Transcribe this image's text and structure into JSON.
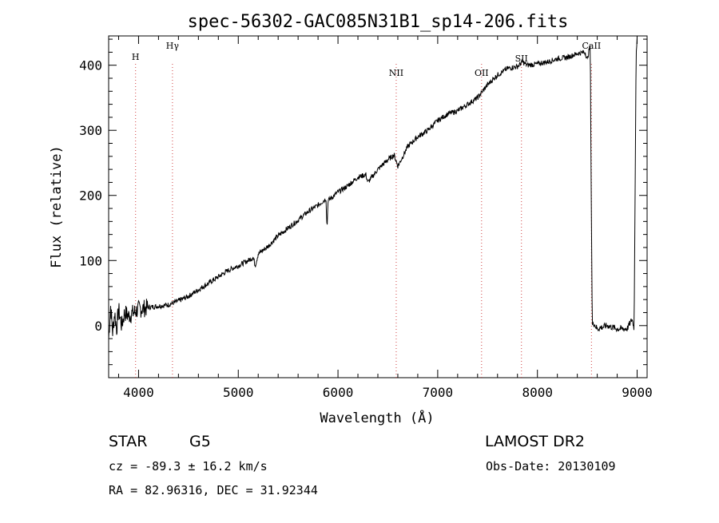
{
  "chart_data": {
    "type": "line",
    "title": "spec-56302-GAC085N31B1_sp14-206.fits",
    "xlabel": "Wavelength (Å)",
    "ylabel": "Flux (relative)",
    "xlim": [
      3700,
      9100
    ],
    "ylim": [
      -80,
      445
    ],
    "xticks": [
      4000,
      5000,
      6000,
      7000,
      8000,
      9000
    ],
    "yticks": [
      0,
      100,
      200,
      300,
      400
    ],
    "grid": false,
    "line_color": "#000000",
    "marker_color": "#d04040",
    "lines": [
      {
        "name": "H",
        "x": 3970
      },
      {
        "name": "Hγ",
        "x": 4340
      },
      {
        "name": "NII",
        "x": 6584
      },
      {
        "name": "OII",
        "x": 7440
      },
      {
        "name": "SII",
        "x": 7840
      },
      {
        "name": "CaII",
        "x": 8542
      }
    ],
    "spectrum": {
      "x": [
        3700,
        3720,
        3740,
        3760,
        3780,
        3800,
        3830,
        3860,
        3900,
        3950,
        4000,
        4100,
        4200,
        4300,
        4400,
        4500,
        4600,
        4700,
        4800,
        4900,
        5000,
        5100,
        5150,
        5170,
        5200,
        5300,
        5400,
        5500,
        5600,
        5700,
        5800,
        5880,
        5890,
        5900,
        6000,
        6100,
        6200,
        6280,
        6300,
        6400,
        6500,
        6563,
        6600,
        6700,
        6800,
        6900,
        7000,
        7100,
        7200,
        7300,
        7400,
        7500,
        7600,
        7700,
        7800,
        7850,
        7900,
        8000,
        8100,
        8200,
        8300,
        8400,
        8480,
        8500,
        8520,
        8530,
        8540,
        8550,
        8560,
        8600,
        8700,
        8800,
        8900,
        8950,
        8970,
        8990,
        9000
      ],
      "y": [
        -20,
        30,
        -10,
        20,
        -5,
        25,
        0,
        20,
        15,
        20,
        25,
        28,
        30,
        32,
        38,
        45,
        55,
        65,
        75,
        85,
        92,
        100,
        105,
        92,
        110,
        122,
        138,
        150,
        162,
        175,
        185,
        195,
        148,
        192,
        205,
        215,
        228,
        232,
        220,
        240,
        255,
        262,
        245,
        275,
        290,
        300,
        315,
        325,
        330,
        340,
        350,
        370,
        385,
        395,
        398,
        405,
        400,
        402,
        405,
        410,
        412,
        418,
        420,
        408,
        425,
        430,
        200,
        0,
        5,
        -5,
        0,
        -5,
        -5,
        10,
        -5,
        420,
        440
      ]
    }
  },
  "info": {
    "obj_class": "STAR",
    "subclass": "G5",
    "survey": "LAMOST DR2",
    "cz": "cz = -89.3 ± 16.2 km/s",
    "obs_date": "Obs-Date: 20130109",
    "coords": "RA =  82.96316, DEC =  31.92344"
  }
}
